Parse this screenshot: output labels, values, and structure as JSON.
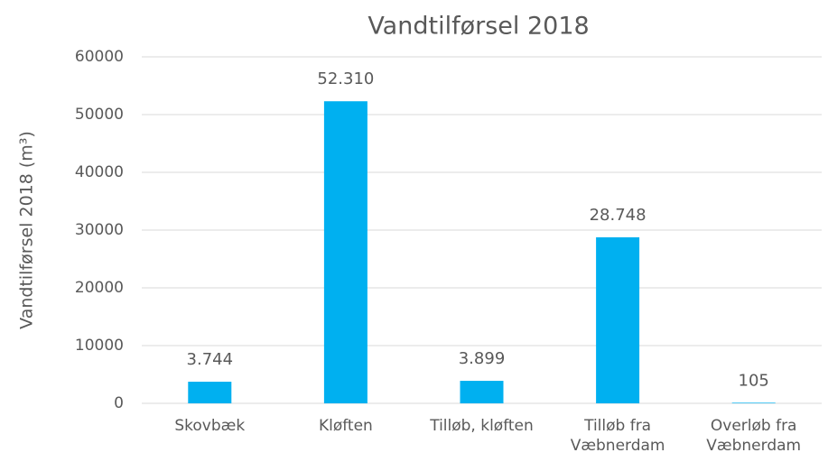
{
  "chart_data": {
    "type": "bar",
    "title": "Vandtilførsel 2018",
    "y_label": "Vandtilførsel 2018 (m³)",
    "categories": [
      "Skovbæk",
      "Kløften",
      "Tilløb, kløften",
      "Tilløb fra Væbnerdam",
      "Overløb fra Væbnerdam"
    ],
    "values": [
      3744,
      52310,
      3899,
      28748,
      105
    ],
    "value_labels": [
      "3.744",
      "52.310",
      "3.899",
      "28.748",
      "105"
    ],
    "color": "#00b0f0",
    "ylim": [
      0,
      60000
    ],
    "yticks": [
      0,
      10000,
      20000,
      30000,
      40000,
      50000,
      60000
    ],
    "grid": true
  }
}
